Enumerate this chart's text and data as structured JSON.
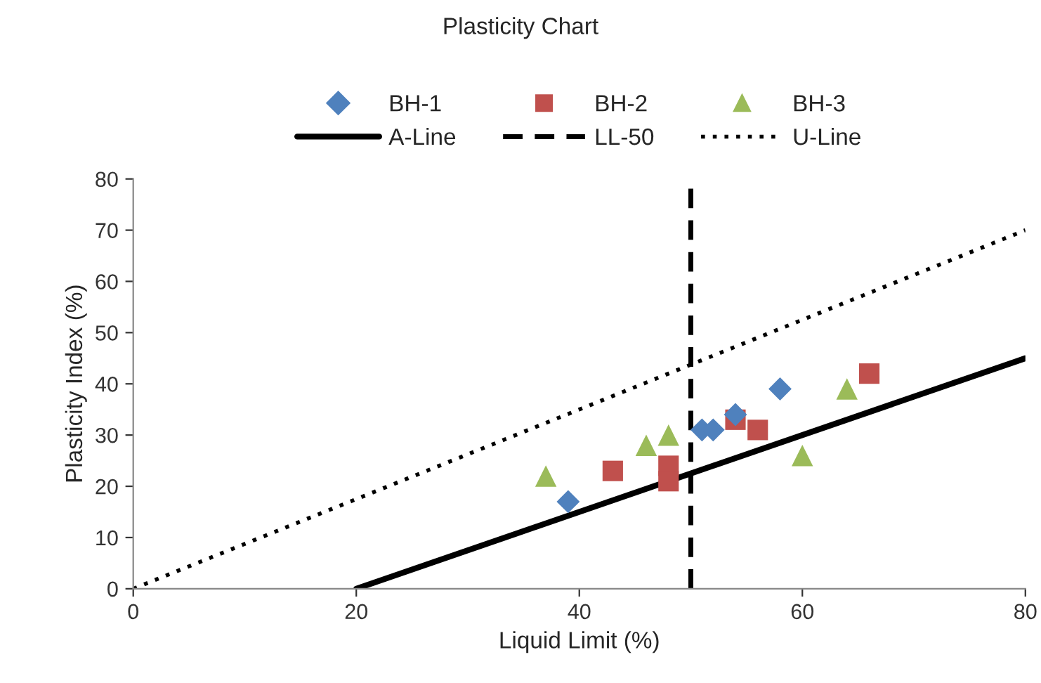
{
  "chart_data": {
    "type": "scatter",
    "title": "Plasticity Chart",
    "xlabel": "Liquid Limit (%)",
    "ylabel": "Plasticity Index (%)",
    "xlim": [
      0,
      80
    ],
    "xticks": [
      0,
      20,
      40,
      60,
      80
    ],
    "ylim": [
      0,
      80
    ],
    "yticks": [
      0,
      10,
      20,
      30,
      40,
      50,
      60,
      70,
      80
    ],
    "grid": false,
    "legend": "top",
    "series": [
      {
        "name": "BH-1",
        "marker": "diamond",
        "color": "#4f81bd",
        "x": [
          39,
          51,
          52,
          54,
          58
        ],
        "values": [
          17,
          31,
          31,
          34,
          39
        ]
      },
      {
        "name": "BH-2",
        "marker": "square",
        "color": "#c0504d",
        "x": [
          43,
          48,
          48,
          54,
          56,
          66
        ],
        "values": [
          23,
          24,
          21,
          33,
          31,
          42
        ]
      },
      {
        "name": "BH-3",
        "marker": "triangle",
        "color": "#9bbb59",
        "x": [
          37,
          46,
          48,
          60,
          64
        ],
        "values": [
          22,
          28,
          30,
          26,
          39
        ]
      },
      {
        "name": "A-Line",
        "type": "line",
        "line_style": "solid",
        "color": "#000000",
        "x": [
          20,
          80
        ],
        "values": [
          0,
          45
        ]
      },
      {
        "name": "LL-50",
        "type": "line",
        "line_style": "dashed",
        "color": "#000000",
        "x": [
          50,
          50
        ],
        "values": [
          0,
          80
        ]
      },
      {
        "name": "U-Line",
        "type": "line",
        "line_style": "dotted",
        "color": "#000000",
        "x": [
          0,
          80
        ],
        "values": [
          0,
          70
        ]
      }
    ]
  }
}
